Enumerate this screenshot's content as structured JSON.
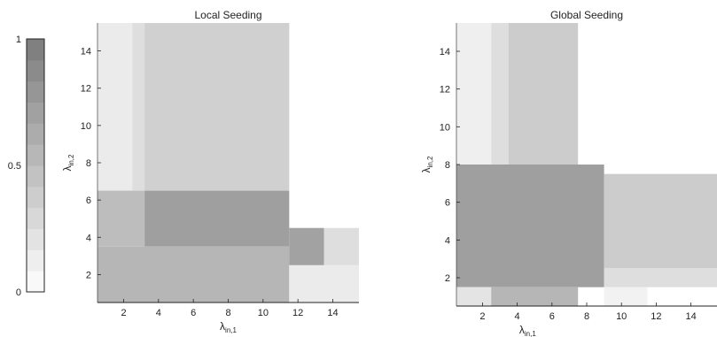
{
  "chart_data": [
    {
      "type": "heatmap",
      "title": "Local Seeding",
      "xlabel": "λin,1",
      "ylabel": "λin,2",
      "xlabel_main": "λ",
      "xlabel_sub": "in,1",
      "ylabel_main": "λ",
      "ylabel_sub": "in,2",
      "xlim": [
        0.5,
        15.5
      ],
      "ylim": [
        0.5,
        15.5
      ],
      "xticks": [
        2,
        4,
        6,
        8,
        10,
        12,
        14
      ],
      "yticks": [
        2,
        4,
        6,
        8,
        10,
        12,
        14
      ],
      "regions": [
        {
          "x": [
            0.5,
            2.5
          ],
          "y": [
            4.5,
            15.5
          ],
          "value": 0.15
        },
        {
          "x": [
            2.5,
            3.2
          ],
          "y": [
            6.5,
            15.5
          ],
          "value": 0.25
        },
        {
          "x": [
            3.2,
            11.5
          ],
          "y": [
            6.5,
            15.5
          ],
          "value": 0.35
        },
        {
          "x": [
            3.2,
            11.5
          ],
          "y": [
            3.5,
            6.5
          ],
          "value": 0.72
        },
        {
          "x": [
            0.5,
            3.2
          ],
          "y": [
            3.5,
            6.5
          ],
          "value": 0.5
        },
        {
          "x": [
            0.5,
            11.5
          ],
          "y": [
            0.5,
            3.5
          ],
          "value": 0.55
        },
        {
          "x": [
            11.5,
            13.5
          ],
          "y": [
            2.5,
            4.5
          ],
          "value": 0.7
        },
        {
          "x": [
            13.5,
            15.5
          ],
          "y": [
            2.5,
            4.5
          ],
          "value": 0.25
        },
        {
          "x": [
            11.5,
            15.5
          ],
          "y": [
            0.5,
            2.5
          ],
          "value": 0.15
        }
      ]
    },
    {
      "type": "heatmap",
      "title": "Global Seeding",
      "xlabel": "λin,1",
      "ylabel": "λin,2",
      "xlabel_main": "λ",
      "xlabel_sub": "in,1",
      "ylabel_main": "λ",
      "ylabel_sub": "in,2",
      "xlim": [
        0.5,
        15.5
      ],
      "ylim": [
        0.5,
        15.5
      ],
      "xticks": [
        2,
        4,
        6,
        8,
        10,
        12,
        14
      ],
      "yticks": [
        2,
        4,
        6,
        8,
        10,
        12,
        14
      ],
      "regions": [
        {
          "x": [
            0.5,
            2.5
          ],
          "y": [
            7.5,
            15.5
          ],
          "value": 0.12
        },
        {
          "x": [
            2.5,
            3.5
          ],
          "y": [
            7.5,
            15.5
          ],
          "value": 0.25
        },
        {
          "x": [
            3.5,
            7.5
          ],
          "y": [
            7.5,
            15.5
          ],
          "value": 0.38
        },
        {
          "x": [
            0.5,
            9.0
          ],
          "y": [
            1.5,
            8.0
          ],
          "value": 0.72
        },
        {
          "x": [
            0.5,
            2.5
          ],
          "y": [
            0.5,
            1.5
          ],
          "value": 0.2
        },
        {
          "x": [
            2.5,
            7.5
          ],
          "y": [
            0.5,
            1.5
          ],
          "value": 0.55
        },
        {
          "x": [
            9.0,
            15.5
          ],
          "y": [
            2.5,
            7.5
          ],
          "value": 0.38
        },
        {
          "x": [
            9.0,
            15.5
          ],
          "y": [
            1.5,
            2.5
          ],
          "value": 0.25
        },
        {
          "x": [
            9.0,
            11.5
          ],
          "y": [
            0.5,
            1.5
          ],
          "value": 0.1
        }
      ]
    }
  ],
  "colorbar": {
    "min": 0,
    "max": 1,
    "tick_labels": [
      "0",
      "0.5",
      "1"
    ],
    "levels": 12,
    "color_low": "#ffffff",
    "color_high": "#7a7a7a"
  }
}
